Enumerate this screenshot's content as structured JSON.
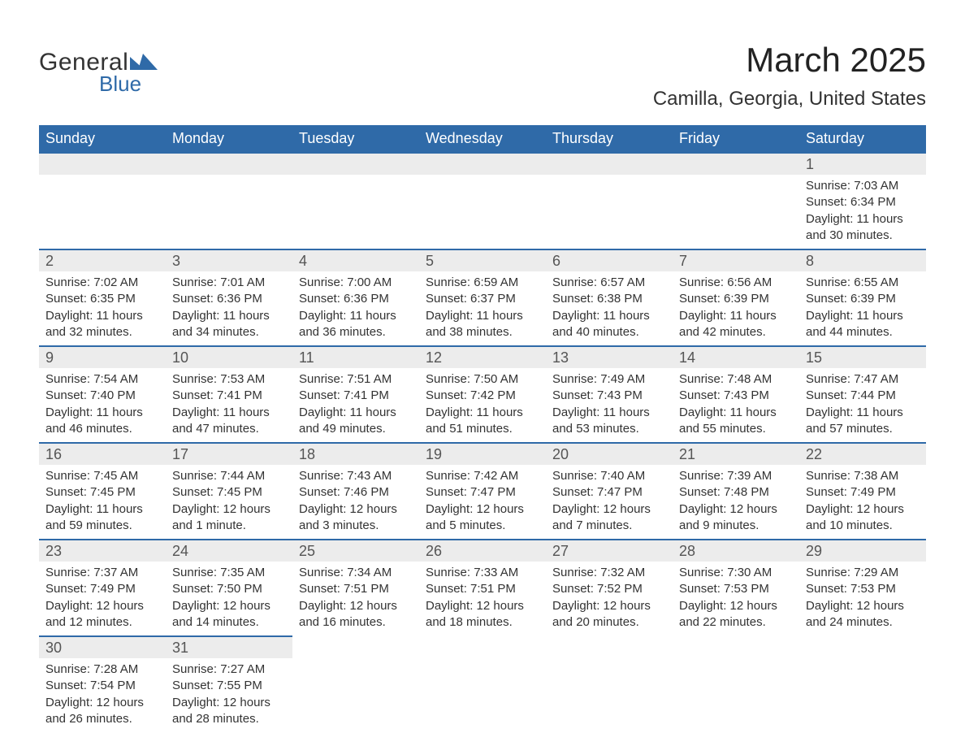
{
  "logo": {
    "word1": "General",
    "word2": "Blue",
    "mark_color": "#2f6aa8"
  },
  "title": "March 2025",
  "location": "Camilla, Georgia, United States",
  "colors": {
    "header_bg": "#2f6aa8",
    "header_text": "#ffffff",
    "daynum_bg": "#ececec",
    "row_border": "#2f6aa8",
    "body_text": "#333333",
    "background": "#ffffff"
  },
  "typography": {
    "title_fontsize": 42,
    "location_fontsize": 24,
    "dayheader_fontsize": 18,
    "daynum_fontsize": 18,
    "cell_fontsize": 15
  },
  "calendar": {
    "type": "table",
    "columns": [
      "Sunday",
      "Monday",
      "Tuesday",
      "Wednesday",
      "Thursday",
      "Friday",
      "Saturday"
    ],
    "start_day_index": 6,
    "days": [
      {
        "n": 1,
        "sunrise": "7:03 AM",
        "sunset": "6:34 PM",
        "daylight": "11 hours and 30 minutes."
      },
      {
        "n": 2,
        "sunrise": "7:02 AM",
        "sunset": "6:35 PM",
        "daylight": "11 hours and 32 minutes."
      },
      {
        "n": 3,
        "sunrise": "7:01 AM",
        "sunset": "6:36 PM",
        "daylight": "11 hours and 34 minutes."
      },
      {
        "n": 4,
        "sunrise": "7:00 AM",
        "sunset": "6:36 PM",
        "daylight": "11 hours and 36 minutes."
      },
      {
        "n": 5,
        "sunrise": "6:59 AM",
        "sunset": "6:37 PM",
        "daylight": "11 hours and 38 minutes."
      },
      {
        "n": 6,
        "sunrise": "6:57 AM",
        "sunset": "6:38 PM",
        "daylight": "11 hours and 40 minutes."
      },
      {
        "n": 7,
        "sunrise": "6:56 AM",
        "sunset": "6:39 PM",
        "daylight": "11 hours and 42 minutes."
      },
      {
        "n": 8,
        "sunrise": "6:55 AM",
        "sunset": "6:39 PM",
        "daylight": "11 hours and 44 minutes."
      },
      {
        "n": 9,
        "sunrise": "7:54 AM",
        "sunset": "7:40 PM",
        "daylight": "11 hours and 46 minutes."
      },
      {
        "n": 10,
        "sunrise": "7:53 AM",
        "sunset": "7:41 PM",
        "daylight": "11 hours and 47 minutes."
      },
      {
        "n": 11,
        "sunrise": "7:51 AM",
        "sunset": "7:41 PM",
        "daylight": "11 hours and 49 minutes."
      },
      {
        "n": 12,
        "sunrise": "7:50 AM",
        "sunset": "7:42 PM",
        "daylight": "11 hours and 51 minutes."
      },
      {
        "n": 13,
        "sunrise": "7:49 AM",
        "sunset": "7:43 PM",
        "daylight": "11 hours and 53 minutes."
      },
      {
        "n": 14,
        "sunrise": "7:48 AM",
        "sunset": "7:43 PM",
        "daylight": "11 hours and 55 minutes."
      },
      {
        "n": 15,
        "sunrise": "7:47 AM",
        "sunset": "7:44 PM",
        "daylight": "11 hours and 57 minutes."
      },
      {
        "n": 16,
        "sunrise": "7:45 AM",
        "sunset": "7:45 PM",
        "daylight": "11 hours and 59 minutes."
      },
      {
        "n": 17,
        "sunrise": "7:44 AM",
        "sunset": "7:45 PM",
        "daylight": "12 hours and 1 minute."
      },
      {
        "n": 18,
        "sunrise": "7:43 AM",
        "sunset": "7:46 PM",
        "daylight": "12 hours and 3 minutes."
      },
      {
        "n": 19,
        "sunrise": "7:42 AM",
        "sunset": "7:47 PM",
        "daylight": "12 hours and 5 minutes."
      },
      {
        "n": 20,
        "sunrise": "7:40 AM",
        "sunset": "7:47 PM",
        "daylight": "12 hours and 7 minutes."
      },
      {
        "n": 21,
        "sunrise": "7:39 AM",
        "sunset": "7:48 PM",
        "daylight": "12 hours and 9 minutes."
      },
      {
        "n": 22,
        "sunrise": "7:38 AM",
        "sunset": "7:49 PM",
        "daylight": "12 hours and 10 minutes."
      },
      {
        "n": 23,
        "sunrise": "7:37 AM",
        "sunset": "7:49 PM",
        "daylight": "12 hours and 12 minutes."
      },
      {
        "n": 24,
        "sunrise": "7:35 AM",
        "sunset": "7:50 PM",
        "daylight": "12 hours and 14 minutes."
      },
      {
        "n": 25,
        "sunrise": "7:34 AM",
        "sunset": "7:51 PM",
        "daylight": "12 hours and 16 minutes."
      },
      {
        "n": 26,
        "sunrise": "7:33 AM",
        "sunset": "7:51 PM",
        "daylight": "12 hours and 18 minutes."
      },
      {
        "n": 27,
        "sunrise": "7:32 AM",
        "sunset": "7:52 PM",
        "daylight": "12 hours and 20 minutes."
      },
      {
        "n": 28,
        "sunrise": "7:30 AM",
        "sunset": "7:53 PM",
        "daylight": "12 hours and 22 minutes."
      },
      {
        "n": 29,
        "sunrise": "7:29 AM",
        "sunset": "7:53 PM",
        "daylight": "12 hours and 24 minutes."
      },
      {
        "n": 30,
        "sunrise": "7:28 AM",
        "sunset": "7:54 PM",
        "daylight": "12 hours and 26 minutes."
      },
      {
        "n": 31,
        "sunrise": "7:27 AM",
        "sunset": "7:55 PM",
        "daylight": "12 hours and 28 minutes."
      }
    ],
    "labels": {
      "sunrise": "Sunrise:",
      "sunset": "Sunset:",
      "daylight": "Daylight:"
    }
  }
}
